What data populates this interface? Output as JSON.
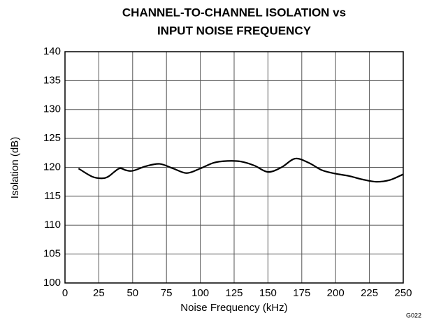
{
  "chart_data": {
    "type": "line",
    "title": [
      "CHANNEL-TO-CHANNEL ISOLATION vs",
      "INPUT NOISE FREQUENCY"
    ],
    "x_label": "Noise Frequency (kHz)",
    "y_label": "Isolation (dB)",
    "annotation": "G022",
    "x": [
      10,
      20,
      27,
      32,
      40,
      45,
      50,
      60,
      70,
      80,
      90,
      100,
      110,
      120,
      130,
      140,
      150,
      160,
      170,
      180,
      190,
      200,
      210,
      220,
      230,
      240,
      250
    ],
    "series": [
      {
        "name": "Isolation",
        "color": "#000000",
        "values": [
          119.8,
          118.4,
          118.1,
          118.4,
          119.8,
          119.5,
          119.4,
          120.2,
          120.6,
          119.8,
          119.0,
          119.8,
          120.8,
          121.1,
          121.0,
          120.3,
          119.2,
          120.0,
          121.5,
          120.8,
          119.5,
          118.9,
          118.5,
          117.9,
          117.5,
          117.8,
          118.8
        ]
      }
    ],
    "xlim": [
      0,
      250
    ],
    "xticks": [
      0,
      25,
      50,
      75,
      100,
      125,
      150,
      175,
      200,
      225,
      250
    ],
    "ylim": [
      100,
      140
    ],
    "yticks": [
      100,
      105,
      110,
      115,
      120,
      125,
      130,
      135,
      140
    ],
    "grid": true
  }
}
